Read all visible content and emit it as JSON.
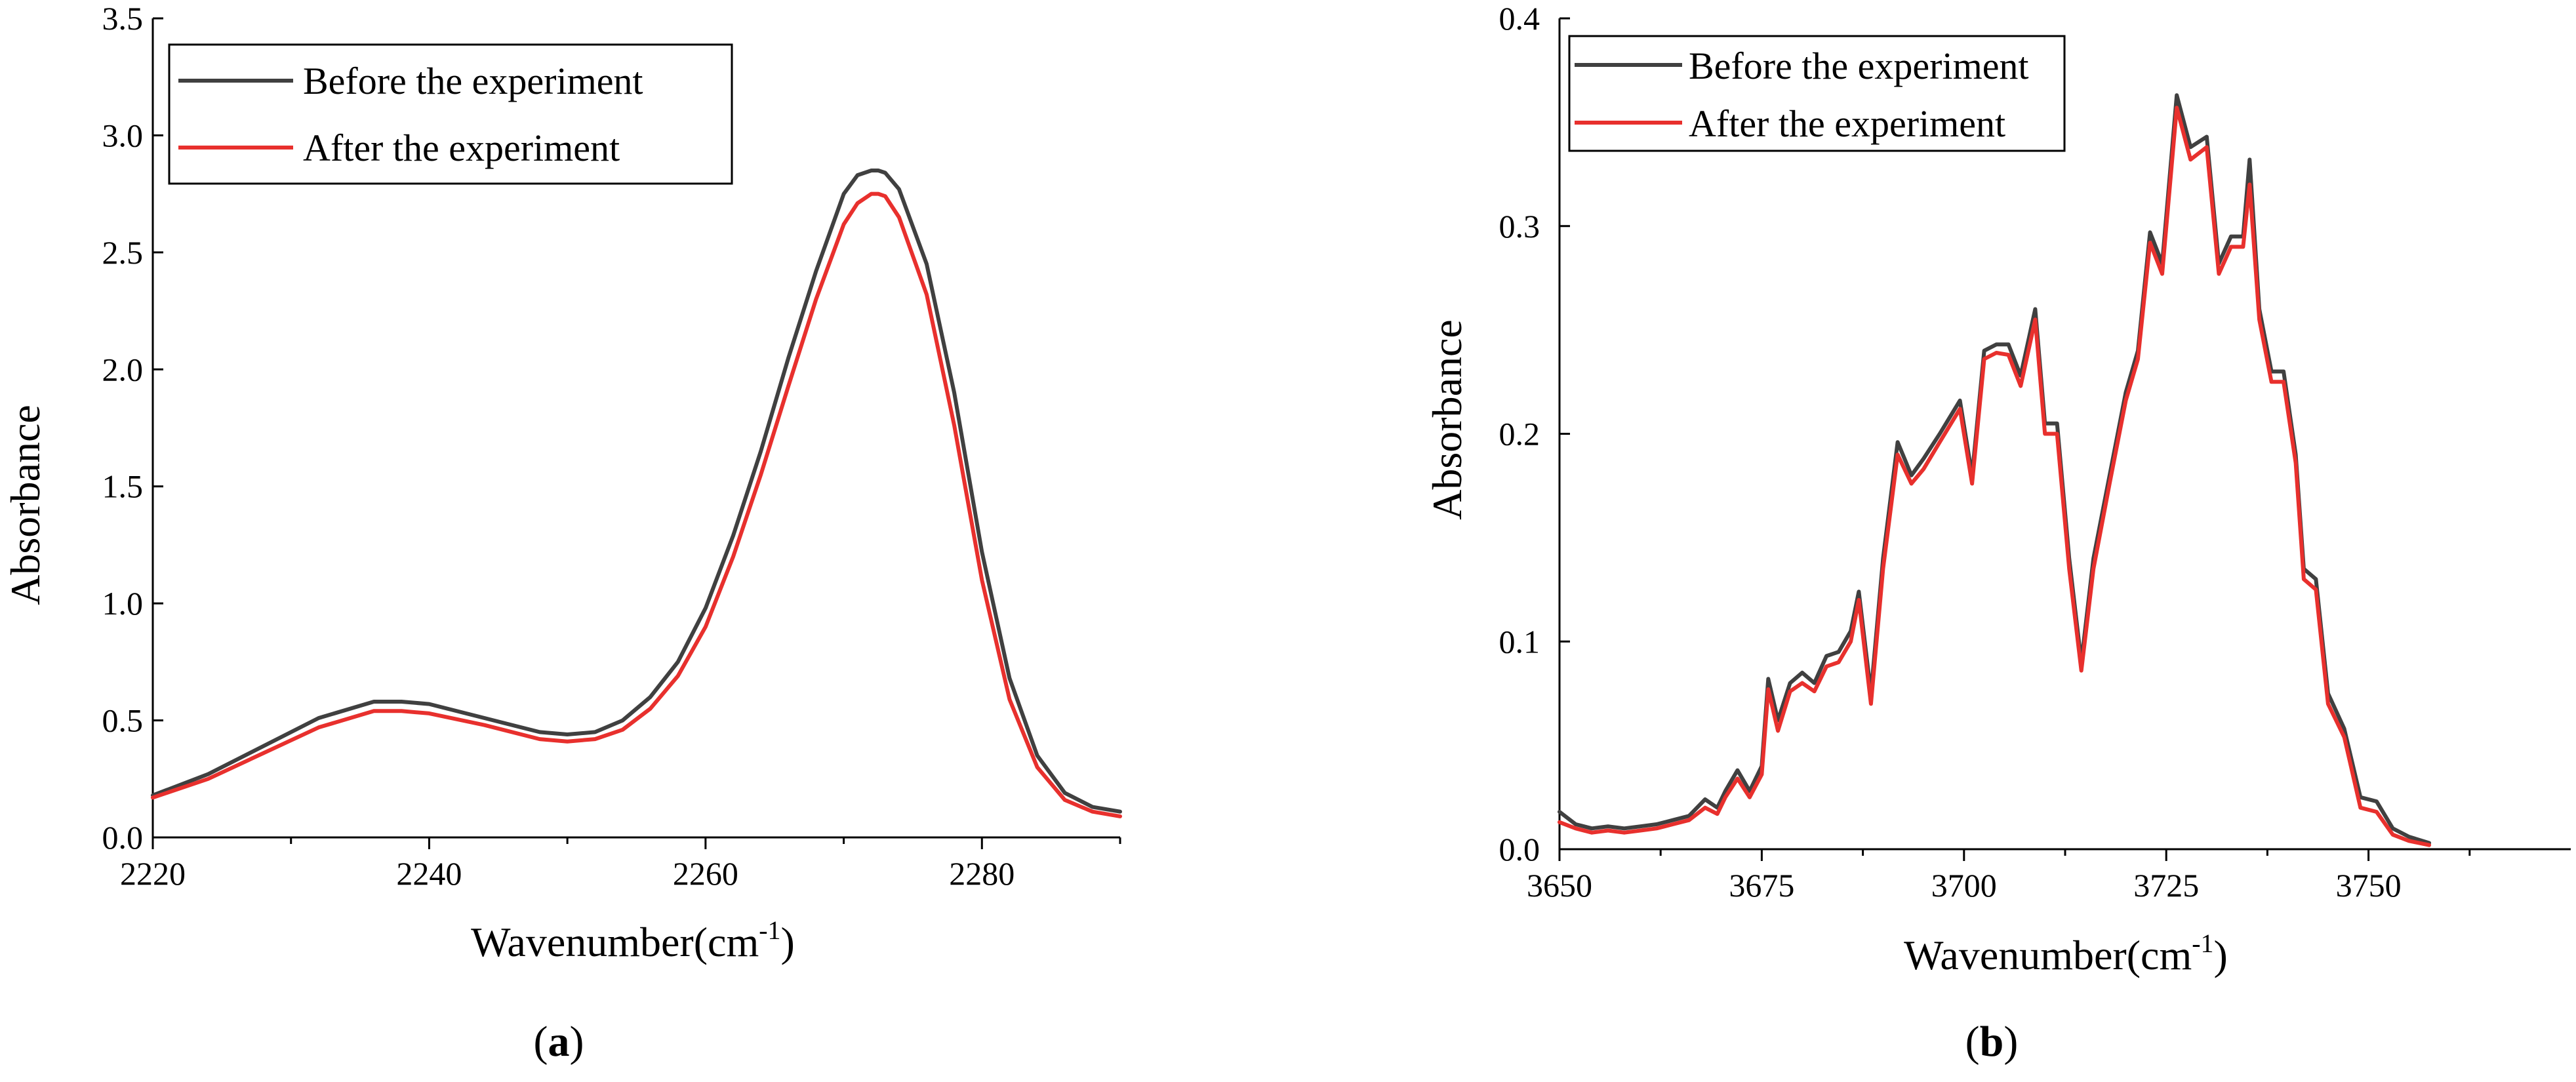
{
  "colors": {
    "before": "#404040",
    "after": "#e8302d"
  },
  "chart_data": [
    {
      "type": "line",
      "panel_label": "a",
      "title": "",
      "xlabel": "Wavenumber(cm",
      "xlabel_sup": "-1",
      "xlabel_close": ")",
      "ylabel": "Absorbance",
      "xlim": [
        2220,
        2290
      ],
      "ylim": [
        0,
        3.5
      ],
      "xticks": [
        2220,
        2240,
        2260,
        2280
      ],
      "xtick_labels": [
        "2220",
        "2240",
        "2260",
        "2280"
      ],
      "xminor": [
        2230,
        2250,
        2270,
        2290
      ],
      "yticks": [
        0,
        0.5,
        1.0,
        1.5,
        2.0,
        2.5,
        3.0,
        3.5
      ],
      "ytick_labels": [
        "0.0",
        "0.5",
        "1.0",
        "1.5",
        "2.0",
        "2.5",
        "3.0",
        "3.5"
      ],
      "legend_position": "top-left",
      "series": [
        {
          "name": "Before the experiment",
          "color_key": "before",
          "x": [
            2220,
            2224,
            2228,
            2232,
            2236,
            2238,
            2240,
            2244,
            2248,
            2250,
            2252,
            2254,
            2256,
            2258,
            2260,
            2262,
            2264,
            2266,
            2268,
            2270,
            2271,
            2272,
            2272.5,
            2273,
            2274,
            2276,
            2278,
            2280,
            2282,
            2284,
            2286,
            2288,
            2290
          ],
          "y": [
            0.18,
            0.27,
            0.39,
            0.51,
            0.58,
            0.58,
            0.57,
            0.51,
            0.45,
            0.44,
            0.45,
            0.5,
            0.6,
            0.75,
            0.98,
            1.29,
            1.65,
            2.05,
            2.42,
            2.75,
            2.83,
            2.85,
            2.85,
            2.84,
            2.77,
            2.45,
            1.9,
            1.22,
            0.68,
            0.35,
            0.19,
            0.13,
            0.11
          ]
        },
        {
          "name": "After the experiment",
          "color_key": "after",
          "x": [
            2220,
            2224,
            2228,
            2232,
            2236,
            2238,
            2240,
            2244,
            2248,
            2250,
            2252,
            2254,
            2256,
            2258,
            2260,
            2262,
            2264,
            2266,
            2268,
            2270,
            2271,
            2272,
            2272.5,
            2273,
            2274,
            2276,
            2278,
            2280,
            2282,
            2284,
            2286,
            2288,
            2290
          ],
          "y": [
            0.17,
            0.25,
            0.36,
            0.47,
            0.54,
            0.54,
            0.53,
            0.48,
            0.42,
            0.41,
            0.42,
            0.46,
            0.55,
            0.69,
            0.9,
            1.2,
            1.55,
            1.93,
            2.3,
            2.62,
            2.71,
            2.75,
            2.75,
            2.74,
            2.65,
            2.32,
            1.76,
            1.1,
            0.59,
            0.3,
            0.16,
            0.11,
            0.09
          ]
        }
      ]
    },
    {
      "type": "line",
      "panel_label": "b",
      "title": "",
      "xlabel": "Wavenumber(cm",
      "xlabel_sup": "-1",
      "xlabel_close": ")",
      "ylabel": "Absorbance",
      "xlim": [
        3650,
        3775
      ],
      "ylim": [
        0,
        0.4
      ],
      "xticks": [
        3650,
        3675,
        3700,
        3725,
        3750
      ],
      "xtick_labels": [
        "3650",
        "3675",
        "3700",
        "3725",
        "3750"
      ],
      "xminor": [
        3662.5,
        3687.5,
        3712.5,
        3737.5,
        3762.5
      ],
      "yticks": [
        0,
        0.1,
        0.2,
        0.3,
        0.4
      ],
      "ytick_labels": [
        "0.0",
        "0.1",
        "0.2",
        "0.3",
        "0.4"
      ],
      "legend_position": "top-left",
      "series": [
        {
          "name": "Before the experiment",
          "color_key": "before",
          "x": [
            3650,
            3652,
            3654,
            3656,
            3658,
            3660,
            3662,
            3664,
            3666,
            3668,
            3669.5,
            3670.5,
            3672,
            3673.5,
            3675,
            3675.8,
            3677,
            3678.5,
            3680,
            3681.5,
            3683,
            3684.5,
            3686,
            3687,
            3688.5,
            3690,
            3691.8,
            3693.5,
            3695,
            3697,
            3699.5,
            3701,
            3702.5,
            3704,
            3705.5,
            3707,
            3708.8,
            3710,
            3711.5,
            3713,
            3714.5,
            3716,
            3718,
            3720,
            3721.5,
            3723,
            3724.5,
            3726.3,
            3728,
            3730,
            3731.5,
            3733,
            3734.5,
            3735.3,
            3736.5,
            3738,
            3739.5,
            3741,
            3742,
            3743.5,
            3745,
            3747,
            3749,
            3751,
            3753,
            3755,
            3757.5
          ],
          "y": [
            0.018,
            0.012,
            0.01,
            0.011,
            0.01,
            0.011,
            0.012,
            0.014,
            0.016,
            0.024,
            0.02,
            0.028,
            0.038,
            0.028,
            0.04,
            0.082,
            0.062,
            0.08,
            0.085,
            0.08,
            0.093,
            0.095,
            0.105,
            0.124,
            0.075,
            0.14,
            0.196,
            0.18,
            0.188,
            0.2,
            0.216,
            0.18,
            0.24,
            0.243,
            0.243,
            0.228,
            0.26,
            0.205,
            0.205,
            0.14,
            0.09,
            0.14,
            0.18,
            0.22,
            0.24,
            0.297,
            0.282,
            0.363,
            0.338,
            0.343,
            0.282,
            0.295,
            0.295,
            0.332,
            0.26,
            0.23,
            0.23,
            0.19,
            0.135,
            0.13,
            0.075,
            0.058,
            0.025,
            0.023,
            0.01,
            0.006,
            0.003
          ]
        },
        {
          "name": "After the experiment",
          "color_key": "after",
          "x": [
            3650,
            3652,
            3654,
            3656,
            3658,
            3660,
            3662,
            3664,
            3666,
            3668,
            3669.5,
            3670.5,
            3672,
            3673.5,
            3675,
            3675.8,
            3677,
            3678.5,
            3680,
            3681.5,
            3683,
            3684.5,
            3686,
            3687,
            3688.5,
            3690,
            3691.8,
            3693.5,
            3695,
            3697,
            3699.5,
            3701,
            3702.5,
            3704,
            3705.5,
            3707,
            3708.8,
            3710,
            3711.5,
            3713,
            3714.5,
            3716,
            3718,
            3720,
            3721.5,
            3723,
            3724.5,
            3726.3,
            3728,
            3730,
            3731.5,
            3733,
            3734.5,
            3735.3,
            3736.5,
            3738,
            3739.5,
            3741,
            3742,
            3743.5,
            3745,
            3747,
            3749,
            3751,
            3753,
            3755,
            3757.5
          ],
          "y": [
            0.013,
            0.01,
            0.008,
            0.009,
            0.008,
            0.009,
            0.01,
            0.012,
            0.014,
            0.02,
            0.017,
            0.025,
            0.034,
            0.025,
            0.036,
            0.077,
            0.057,
            0.076,
            0.08,
            0.076,
            0.088,
            0.09,
            0.1,
            0.12,
            0.07,
            0.135,
            0.19,
            0.176,
            0.183,
            0.196,
            0.212,
            0.176,
            0.236,
            0.239,
            0.238,
            0.223,
            0.255,
            0.2,
            0.2,
            0.135,
            0.086,
            0.135,
            0.176,
            0.216,
            0.236,
            0.292,
            0.277,
            0.357,
            0.332,
            0.338,
            0.277,
            0.29,
            0.29,
            0.32,
            0.255,
            0.225,
            0.225,
            0.186,
            0.13,
            0.125,
            0.07,
            0.054,
            0.02,
            0.018,
            0.007,
            0.004,
            0.002
          ]
        }
      ]
    }
  ]
}
